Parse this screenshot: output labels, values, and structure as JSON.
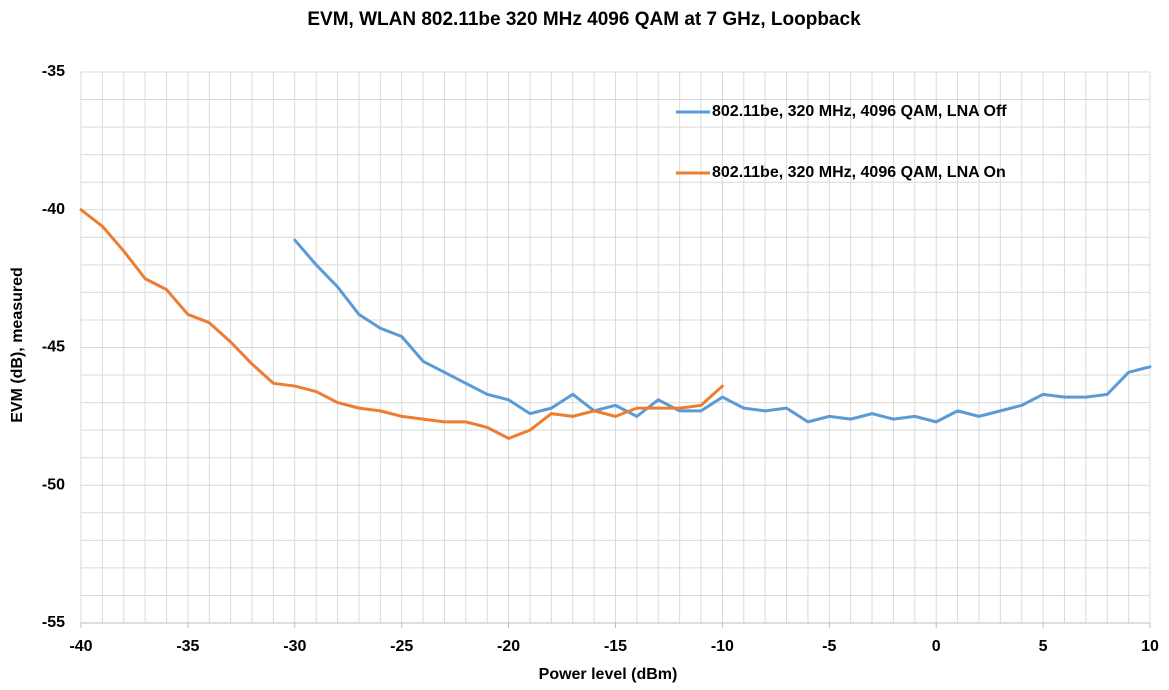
{
  "chart_data": {
    "type": "line",
    "title": "EVM, WLAN 802.11be 320 MHz 4096 QAM at 7 GHz, Loopback",
    "xlabel": "Power level (dBm)",
    "ylabel": "EVM (dB), measured",
    "x": [
      -40,
      -39,
      -38,
      -37,
      -36,
      -35,
      -34,
      -33,
      -32,
      -31,
      -30,
      -29,
      -28,
      -27,
      -26,
      -25,
      -24,
      -23,
      -22,
      -21,
      -20,
      -19,
      -18,
      -17,
      -16,
      -15,
      -14,
      -13,
      -12,
      -11,
      -10,
      -9,
      -8,
      -7,
      -6,
      -5,
      -4,
      -3,
      -2,
      -1,
      0,
      1,
      2,
      3,
      4,
      5,
      6,
      7,
      8,
      9,
      10
    ],
    "series": [
      {
        "name": "802.11be, 320 MHz, 4096 QAM, LNA Off",
        "color": "#5b9bd5",
        "values": [
          null,
          null,
          null,
          null,
          null,
          null,
          null,
          null,
          null,
          null,
          -41.1,
          -42.0,
          -42.8,
          -43.8,
          -44.3,
          -44.6,
          -45.5,
          -45.9,
          -46.3,
          -46.7,
          -46.9,
          -47.4,
          -47.2,
          -46.7,
          -47.3,
          -47.1,
          -47.5,
          -46.9,
          -47.3,
          -47.3,
          -46.8,
          -47.2,
          -47.3,
          -47.2,
          -47.7,
          -47.5,
          -47.6,
          -47.4,
          -47.6,
          -47.5,
          -47.7,
          -47.3,
          -47.5,
          -47.3,
          -47.1,
          -46.7,
          -46.8,
          -46.8,
          -46.7,
          -45.9,
          -45.7
        ]
      },
      {
        "name": "802.11be, 320 MHz, 4096 QAM, LNA On",
        "color": "#ed7d31",
        "values": [
          -40.0,
          -40.6,
          -41.5,
          -42.5,
          -42.9,
          -43.8,
          -44.1,
          -44.8,
          -45.6,
          -46.3,
          -46.4,
          -46.6,
          -47.0,
          -47.2,
          -47.3,
          -47.5,
          -47.6,
          -47.7,
          -47.7,
          -47.9,
          -48.3,
          -48.0,
          -47.4,
          -47.5,
          -47.3,
          -47.5,
          -47.2,
          -47.2,
          -47.2,
          -47.1,
          -46.4,
          null,
          null,
          null,
          null,
          null,
          null,
          null,
          null,
          null,
          null,
          null,
          null,
          null,
          null,
          null,
          null,
          null,
          null,
          null,
          null
        ]
      }
    ],
    "xlim": [
      -40,
      10
    ],
    "xticks": [
      -40,
      -35,
      -30,
      -25,
      -20,
      -15,
      -10,
      -5,
      0,
      5,
      10
    ],
    "ylim": [
      -55,
      -35
    ],
    "yticks": [
      -55,
      -50,
      -45,
      -40,
      -35
    ],
    "xminorticks": [
      -40,
      -39,
      -38,
      -37,
      -36,
      -35,
      -34,
      -33,
      -32,
      -31,
      -30,
      -29,
      -28,
      -27,
      -26,
      -25,
      -24,
      -23,
      -22,
      -21,
      -20,
      -19,
      -18,
      -17,
      -16,
      -15,
      -14,
      -13,
      -12,
      -11,
      -10,
      -9,
      -8,
      -7,
      -6,
      -5,
      -4,
      -3,
      -2,
      -1,
      0,
      1,
      2,
      3,
      4,
      5,
      6,
      7,
      8,
      9,
      10
    ],
    "yminorticks": [
      -55,
      -54,
      -53,
      -52,
      -51,
      -50,
      -49,
      -48,
      -47,
      -46,
      -45,
      -44,
      -43,
      -42,
      -41,
      -40,
      -39,
      -38,
      -37,
      -36,
      -35
    ],
    "grid": true,
    "legend": "upper right"
  }
}
